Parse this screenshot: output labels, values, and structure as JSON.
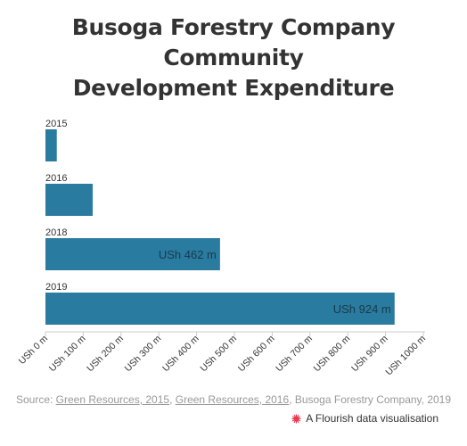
{
  "page": {
    "title_line1": "Busoga Forestry Company Community",
    "title_line2": "Development Expenditure"
  },
  "source": {
    "prefix": "Source: ",
    "link1": "Green Resources, 2015",
    "sep1": ", ",
    "link2": "Green Resources, 2016",
    "suffix": ", Busoga Forestry Company, 2019"
  },
  "branding": {
    "label": "A Flourish data visualisation",
    "icon": "flourish-logo-icon"
  },
  "colors": {
    "bar": "#2a7ba0",
    "bar_label": "#1a3a4a",
    "text": "#333333",
    "axis": "#cccccc",
    "logo": "#e8384f"
  },
  "chart_data": {
    "type": "bar",
    "orientation": "horizontal",
    "categories": [
      "2015",
      "2016",
      "2018",
      "2019"
    ],
    "values": [
      30,
      125,
      462,
      924
    ],
    "data_labels": [
      "",
      "",
      "USh 462 m",
      "USh 924 m"
    ],
    "xlim": [
      0,
      1000
    ],
    "x_ticks": [
      0,
      100,
      200,
      300,
      400,
      500,
      600,
      700,
      800,
      900,
      1000
    ],
    "x_tick_labels": [
      "USh 0 m",
      "USh 100 m",
      "USh 200 m",
      "USh 300 m",
      "USh 400 m",
      "USh 500 m",
      "USh 600 m",
      "USh 700 m",
      "USh 800 m",
      "USh 900 m",
      "USh 1000 m"
    ],
    "grid": false,
    "legend": "none"
  }
}
